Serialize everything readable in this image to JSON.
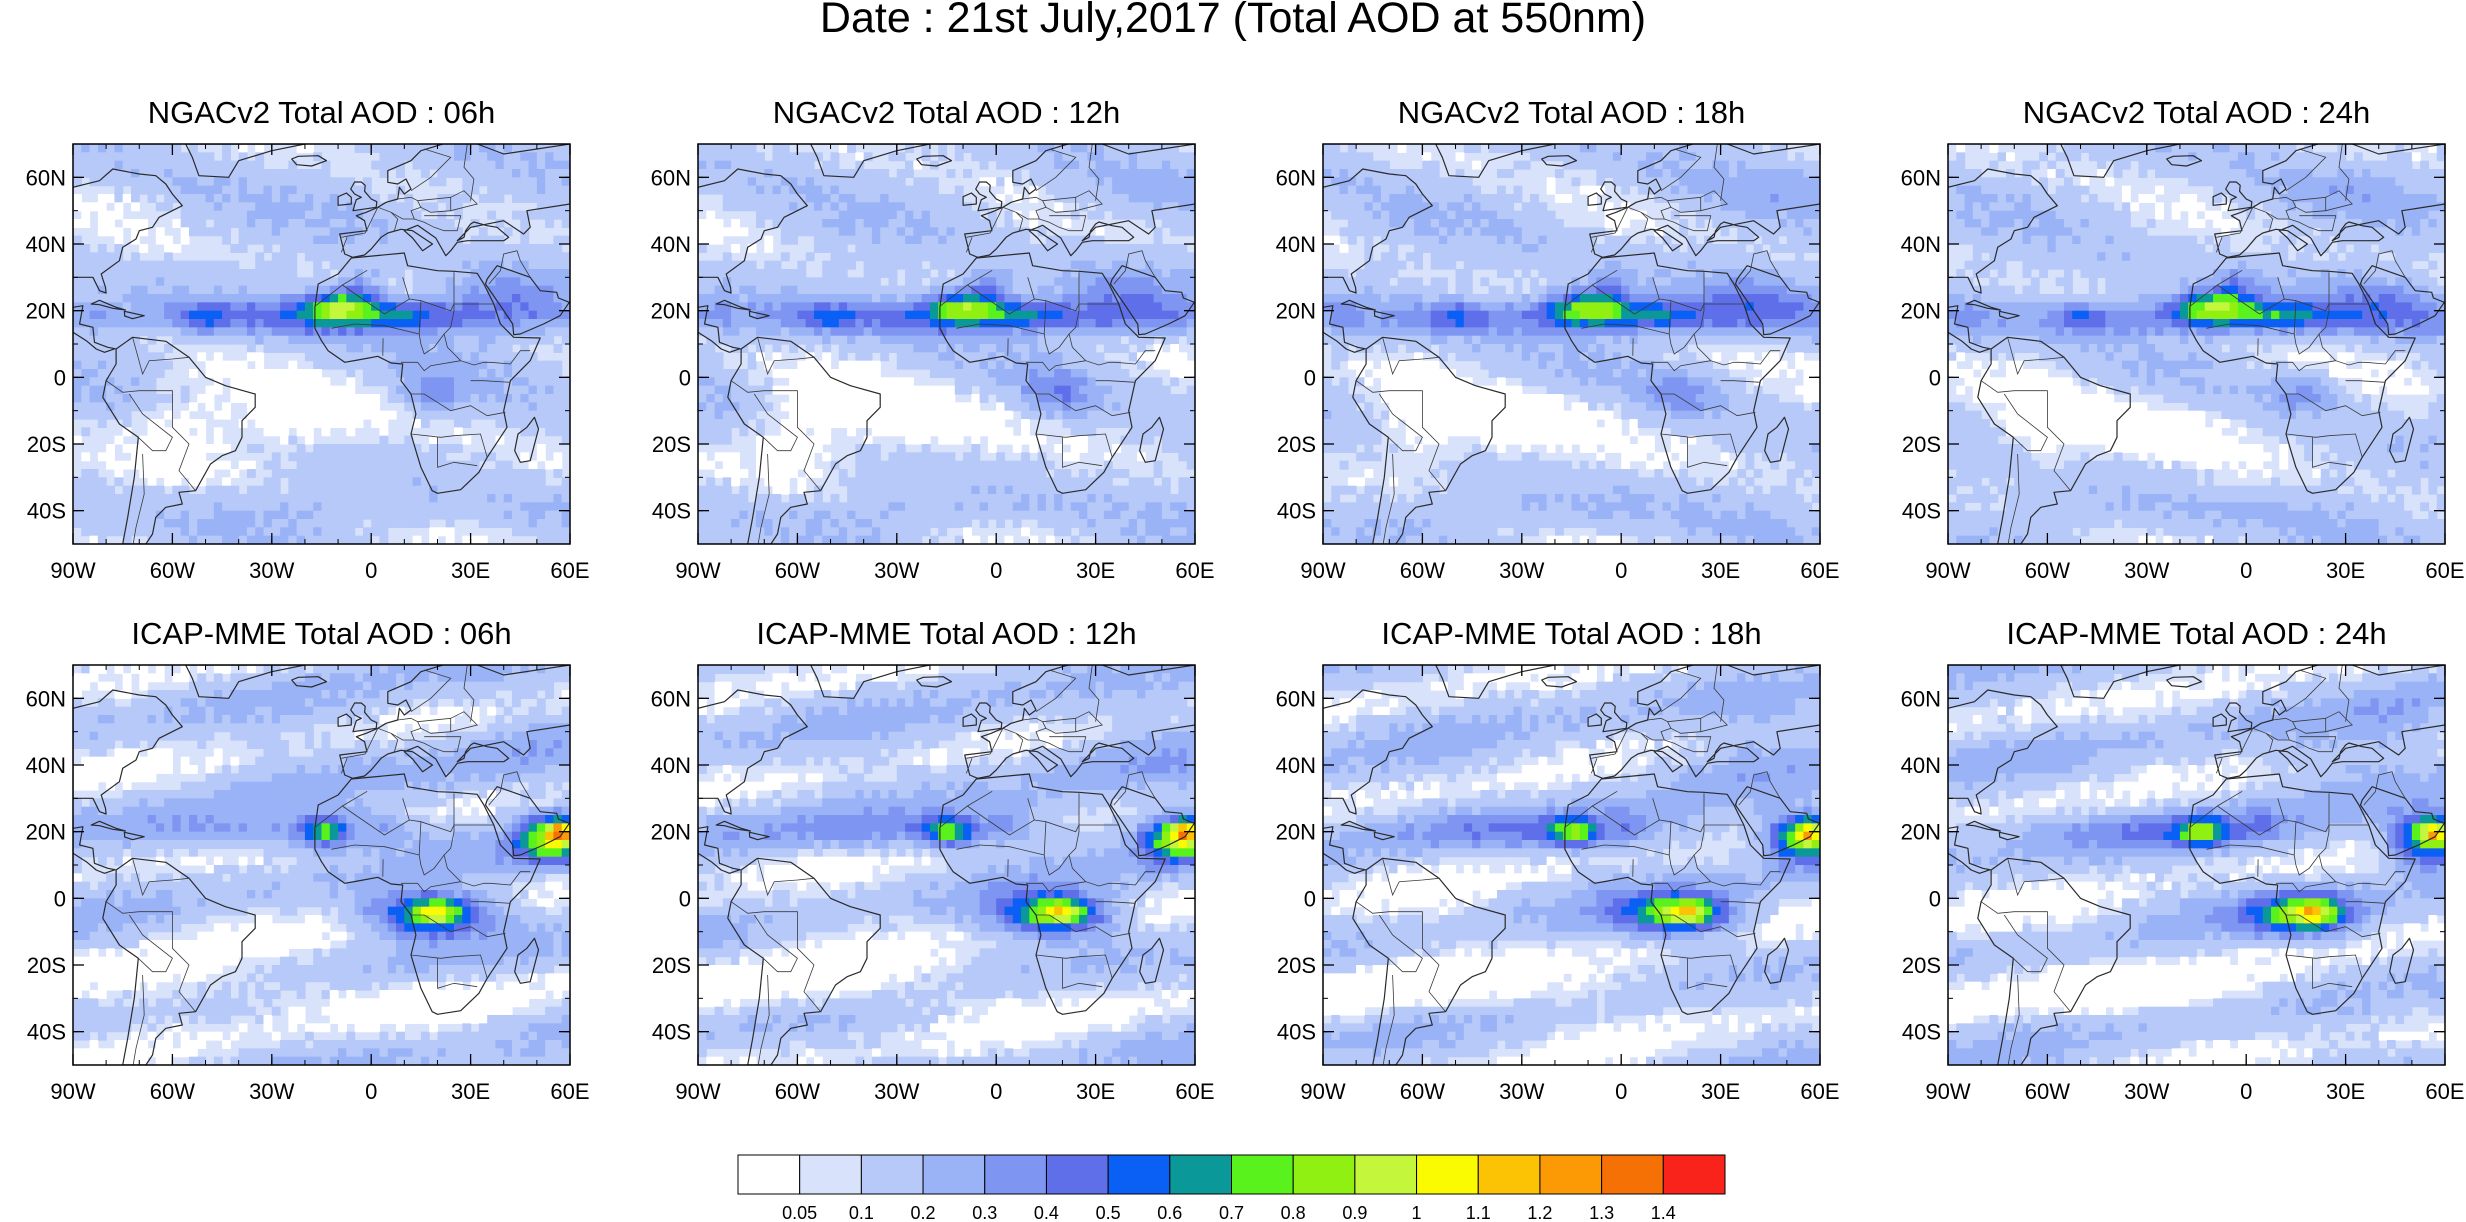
{
  "figure": {
    "title": "Date : 21st July,2017 (Total AOD at 550nm)"
  },
  "axes": {
    "lat_ticks": [
      "60N",
      "40N",
      "20N",
      "0",
      "20S",
      "40S"
    ],
    "lat_values": [
      60,
      40,
      20,
      0,
      -20,
      -40
    ],
    "lon_ticks": [
      "90W",
      "60W",
      "30W",
      "0",
      "30E",
      "60E"
    ],
    "lon_values": [
      -90,
      -60,
      -30,
      0,
      30,
      60
    ],
    "lon_range": [
      -90,
      60
    ],
    "lat_range": [
      -50,
      70
    ]
  },
  "panels": [
    {
      "title": "NGACv2 Total AOD : 06h",
      "model": "ngac",
      "hour": 6
    },
    {
      "title": "NGACv2 Total AOD : 12h",
      "model": "ngac",
      "hour": 12
    },
    {
      "title": "NGACv2 Total AOD : 18h",
      "model": "ngac",
      "hour": 18
    },
    {
      "title": "NGACv2 Total AOD : 24h",
      "model": "ngac",
      "hour": 24
    },
    {
      "title": "ICAP-MME Total AOD : 06h",
      "model": "icap",
      "hour": 6
    },
    {
      "title": "ICAP-MME Total AOD : 12h",
      "model": "icap",
      "hour": 12
    },
    {
      "title": "ICAP-MME Total AOD : 18h",
      "model": "icap",
      "hour": 18
    },
    {
      "title": "ICAP-MME Total AOD : 24h",
      "model": "icap",
      "hour": 24
    }
  ],
  "colorbar": {
    "labels": [
      "0.05",
      "0.1",
      "0.2",
      "0.3",
      "0.4",
      "0.5",
      "0.6",
      "0.7",
      "0.8",
      "0.9",
      "1",
      "1.1",
      "1.2",
      "1.3",
      "1.4"
    ],
    "colors": [
      "#ffffff",
      "#d8e2fa",
      "#b6c9f8",
      "#9ab3f7",
      "#7e96f2",
      "#5f6fea",
      "#0a5ff5",
      "#0b9898",
      "#5af21c",
      "#90f012",
      "#c4f73c",
      "#fafa00",
      "#fcc305",
      "#fc9a05",
      "#f67105",
      "#f9231c"
    ]
  }
}
